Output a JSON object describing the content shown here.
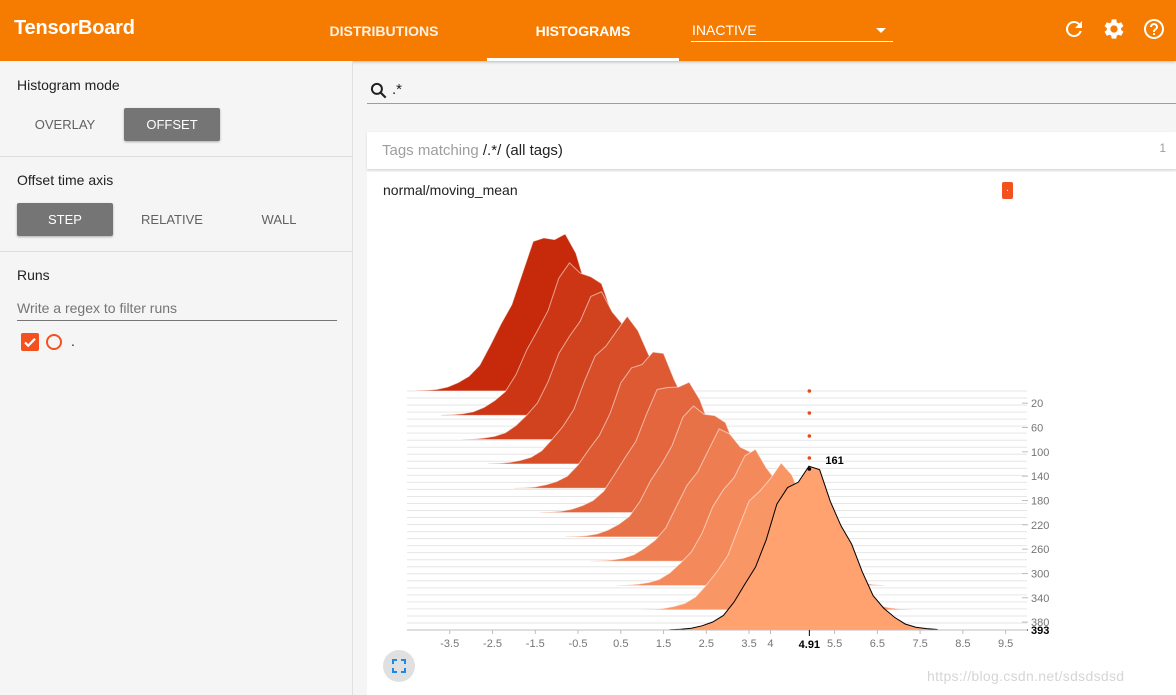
{
  "app": {
    "title": "TensorBoard"
  },
  "header": {
    "tabs": [
      {
        "label": "DISTRIBUTIONS",
        "active": false
      },
      {
        "label": "HISTOGRAMS",
        "active": true
      }
    ],
    "inactive_select": "INACTIVE",
    "icons": [
      "refresh-icon",
      "settings-icon",
      "help-icon"
    ],
    "color": "#f57c00"
  },
  "sidebar": {
    "histogram_mode": {
      "title": "Histogram mode",
      "options": [
        "OVERLAY",
        "OFFSET"
      ],
      "selected": "OFFSET"
    },
    "offset_time_axis": {
      "title": "Offset time axis",
      "options": [
        "STEP",
        "RELATIVE",
        "WALL"
      ],
      "selected": "STEP"
    },
    "runs": {
      "title": "Runs",
      "filter_placeholder": "Write a regex to filter runs",
      "items": [
        {
          "name": ".",
          "checked": true,
          "color": "#f4511e"
        }
      ]
    }
  },
  "main": {
    "search": ".*",
    "tags_card": {
      "prefix": "Tags matching ",
      "pattern": "/.*/",
      "suffix": " (all tags)",
      "count": "1"
    },
    "chart_card": {
      "title": "normal/moving_mean",
      "run_label": "."
    },
    "watermark": "https://blog.csdn.net/sdsdsdsd"
  },
  "chart_data": {
    "type": "histogram-offset",
    "x_ticks": [
      "-3.5",
      "-2.5",
      "-1.5",
      "-0.5",
      "0.5",
      "1.5",
      "2.5",
      "3.5",
      "4",
      "5.5",
      "6.5",
      "7.5",
      "8.5",
      "9.5"
    ],
    "x_tick_values": [
      -3.5,
      -2.5,
      -1.5,
      -0.5,
      0.5,
      1.5,
      2.5,
      3.5,
      4.0,
      5.5,
      6.5,
      7.5,
      8.5,
      9.5
    ],
    "y_ticks": [
      "20",
      "60",
      "100",
      "140",
      "180",
      "220",
      "260",
      "300",
      "340",
      "380"
    ],
    "y_tick_values": [
      20,
      60,
      100,
      140,
      180,
      220,
      260,
      300,
      340,
      380
    ],
    "step_range": [
      0,
      393
    ],
    "x_range": [
      -4.5,
      10.0
    ],
    "hover": {
      "step": "393",
      "x": "4.91",
      "count": "161"
    },
    "series": [
      {
        "step": 0,
        "mean": -1.1,
        "peak": 160
      },
      {
        "step": 40,
        "mean": -0.5,
        "peak": 150
      },
      {
        "step": 80,
        "mean": 0.0,
        "peak": 142
      },
      {
        "step": 120,
        "mean": 0.6,
        "peak": 140
      },
      {
        "step": 160,
        "mean": 1.2,
        "peak": 135
      },
      {
        "step": 200,
        "mean": 1.8,
        "peak": 132
      },
      {
        "step": 240,
        "mean": 2.4,
        "peak": 130
      },
      {
        "step": 280,
        "mean": 3.0,
        "peak": 128
      },
      {
        "step": 320,
        "mean": 3.6,
        "peak": 130
      },
      {
        "step": 360,
        "mean": 4.2,
        "peak": 140
      },
      {
        "step": 393,
        "mean": 4.85,
        "peak": 161
      }
    ],
    "colors": {
      "old": "#c62a0b",
      "new": "#ffa270",
      "highlight_line": "#000000"
    }
  }
}
